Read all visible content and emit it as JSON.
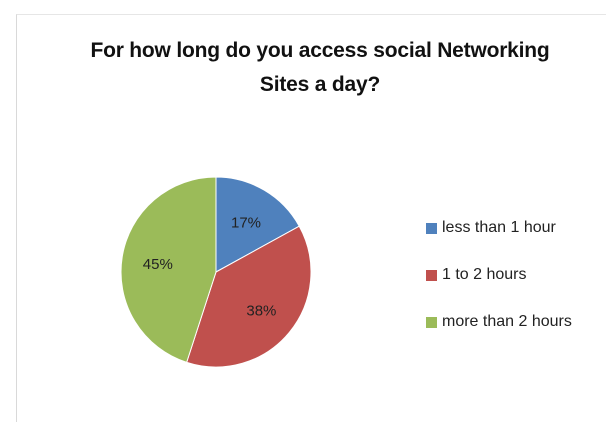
{
  "chart_data": {
    "type": "pie",
    "title": "For how long do you access social Networking Sites a day?",
    "title_lines": [
      "For how long do you access social Networking",
      "Sites a day?"
    ],
    "categories": [
      "less than 1 hour",
      "1 to 2 hours",
      "more than 2 hours"
    ],
    "values": [
      17,
      38,
      45
    ],
    "value_labels": [
      "17%",
      "38%",
      "45%"
    ],
    "colors": [
      "#4f81bd",
      "#c0504d",
      "#9bbb59"
    ],
    "legend_placement": "right",
    "start_angle": "12 o'clock, clockwise"
  }
}
